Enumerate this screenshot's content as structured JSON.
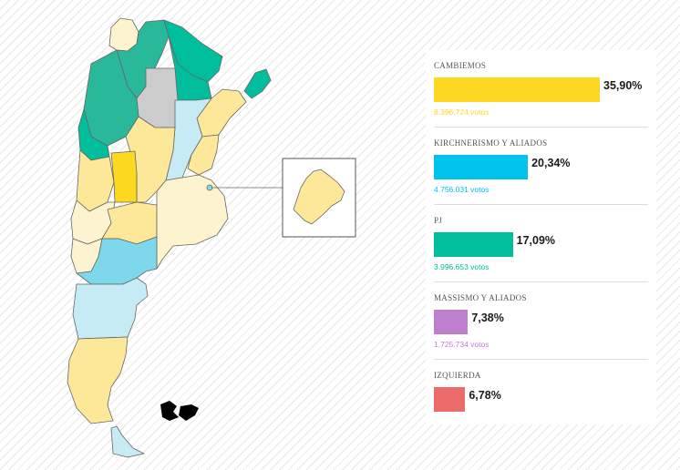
{
  "colors": {
    "cambiemos": "#fcd920",
    "cambiemos_light": "#fde89a",
    "cambiemos_pale": "#fdf4cf",
    "kirchnerismo": "#00c3eb",
    "kirchnerismo_mid": "#7dd8ec",
    "kirchnerismo_light": "#c6ebf5",
    "pj": "#00bd9c",
    "pj_mid": "#2ab89a",
    "massismo": "#bf7fcf",
    "izquierda": "#ec6b6b",
    "neutral": "#cccccc",
    "border": "#666666",
    "islands": "#000000"
  },
  "chart_data": {
    "type": "bar",
    "title": "",
    "categories": [
      "CAMBIEMOS",
      "KIRCHNERISMO Y ALIADOS",
      "PJ",
      "MASSISMO Y ALIADOS",
      "IZQUIERDA"
    ],
    "values": [
      35.9,
      20.34,
      17.09,
      7.38,
      6.78
    ],
    "value_labels": [
      "35,90%",
      "20,34%",
      "17,09%",
      "7,38%",
      "6,78%"
    ],
    "votes": [
      "8.396.724 votos",
      "4.756.031 votos",
      "3.996.653 votos",
      "1.725.734 votos",
      ""
    ],
    "colors": [
      "#fcd920",
      "#00c3eb",
      "#00bd9c",
      "#bf7fcf",
      "#ec6b6b"
    ],
    "ylim": [
      0,
      40
    ],
    "orientation": "horizontal"
  }
}
